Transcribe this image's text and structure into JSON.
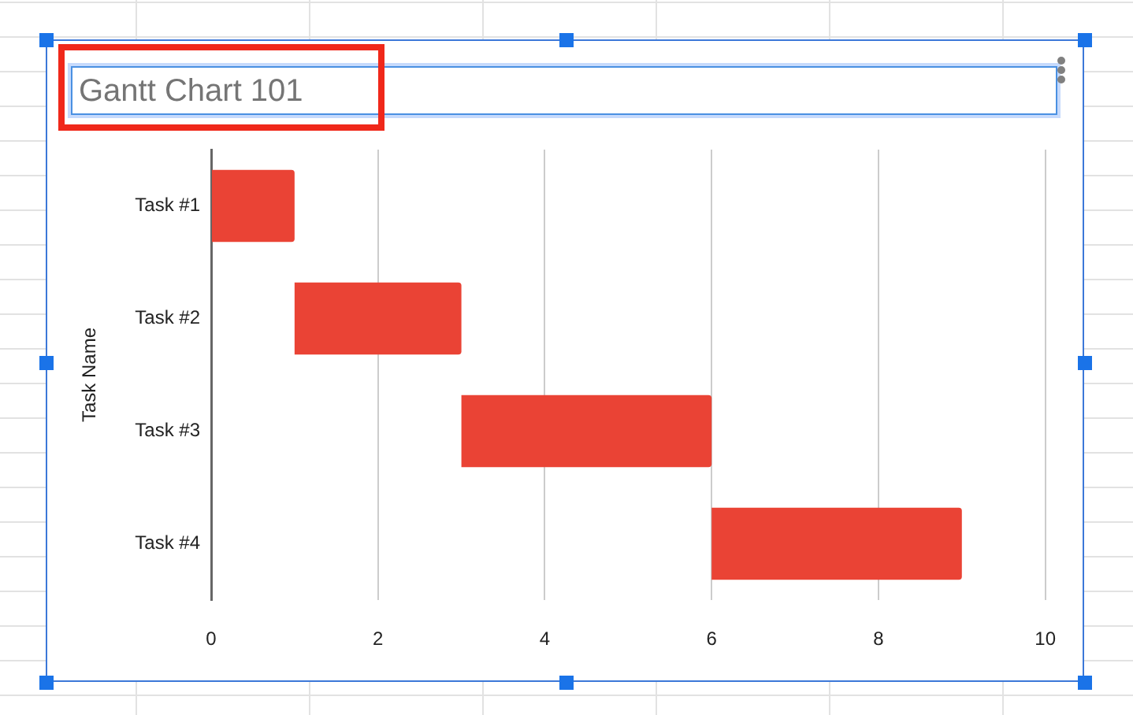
{
  "chart_data": {
    "type": "bar",
    "orientation": "horizontal",
    "title": "Gantt Chart 101",
    "ylabel": "Task Name",
    "categories": [
      "Task #1",
      "Task #2",
      "Task #3",
      "Task #4"
    ],
    "values": [
      1,
      2,
      3,
      3
    ],
    "base": [
      0,
      1,
      3,
      6
    ],
    "color": "#ea4335",
    "xlim": [
      0,
      10
    ],
    "xticks": [
      0,
      2,
      4,
      6,
      8,
      10
    ],
    "grid": "x"
  }
}
